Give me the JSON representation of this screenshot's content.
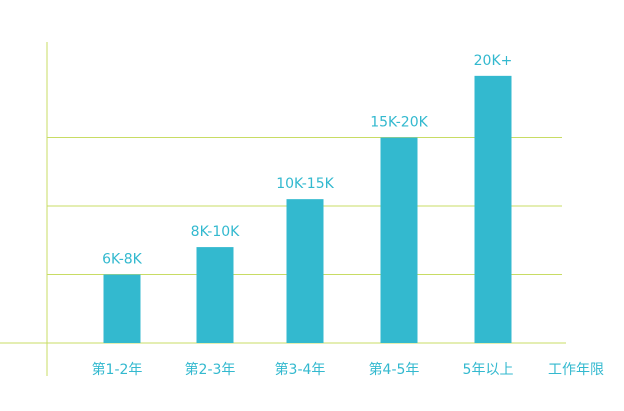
{
  "chart_data": {
    "type": "bar",
    "categories": [
      "第1-2年",
      "第2-3年",
      "第3-4年",
      "第4-5年",
      "5年以上"
    ],
    "values": [
      1,
      1.4,
      2.1,
      3,
      3.9
    ],
    "data_labels": [
      "6K-8K",
      "8K-10K",
      "10K-15K",
      "15K-20K",
      "20K+"
    ],
    "title": "",
    "xlabel": "工作年限",
    "ylabel": "",
    "ylim": [
      0,
      4
    ],
    "grid": true,
    "colors": {
      "bar": "#33b9cf",
      "text": "#33b9cf",
      "axis": "#c8dc64"
    }
  }
}
